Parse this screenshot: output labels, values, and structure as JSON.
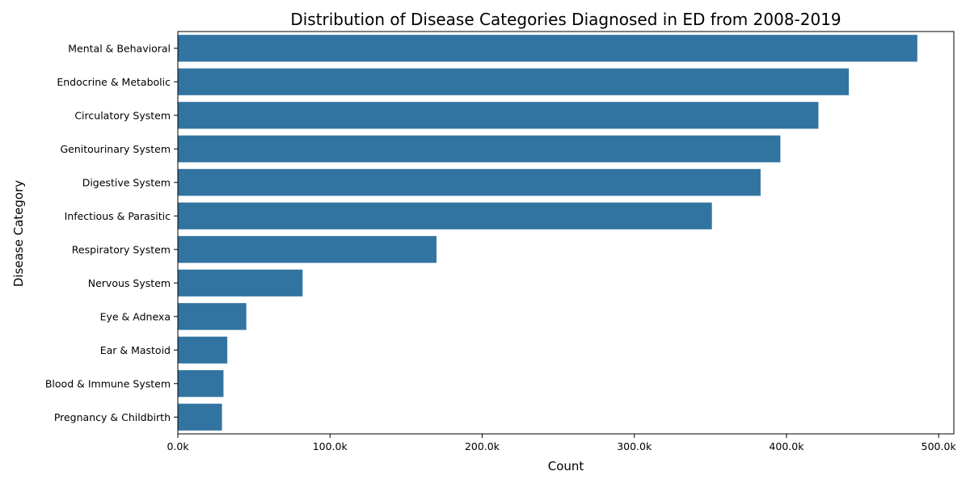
{
  "chart_data": {
    "type": "bar",
    "orientation": "horizontal",
    "title": "Distribution of Disease Categories Diagnosed in ED from 2008-2019",
    "xlabel": "Count",
    "ylabel": "Disease Category",
    "xlim": [
      0,
      510000
    ],
    "x_ticks": [
      0,
      100000,
      200000,
      300000,
      400000,
      500000
    ],
    "x_tick_labels": [
      "0.0k",
      "100.0k",
      "200.0k",
      "300.0k",
      "400.0k",
      "500.0k"
    ],
    "grid": false,
    "bar_color": "#3274a1",
    "categories": [
      "Mental & Behavioral",
      "Endocrine & Metabolic",
      "Circulatory System",
      "Genitourinary System",
      "Digestive System",
      "Infectious & Parasitic",
      "Respiratory System",
      "Nervous System",
      "Eye & Adnexa",
      "Ear & Mastoid",
      "Blood & Immune System",
      "Pregnancy & Childbirth"
    ],
    "values": [
      486000,
      441000,
      421000,
      396000,
      383000,
      351000,
      170000,
      82000,
      45000,
      32500,
      30000,
      29000
    ]
  }
}
